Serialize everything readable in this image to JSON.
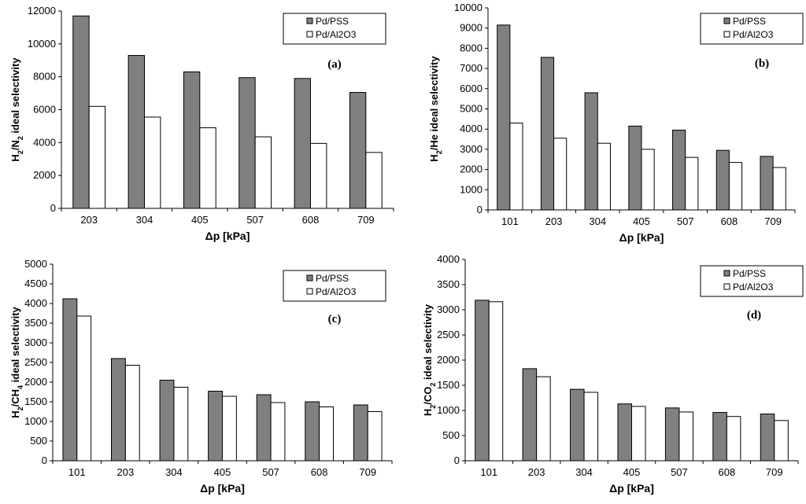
{
  "colors": {
    "series1": "#808080",
    "series2": "#ffffff",
    "stroke": "#000000"
  },
  "chart_data": [
    {
      "type": "bar",
      "panel": "(a)",
      "categories": [
        "203",
        "304",
        "405",
        "507",
        "608",
        "709"
      ],
      "series": [
        {
          "name": "Pd/PSS",
          "values": [
            11700,
            9300,
            8300,
            7950,
            7900,
            7050
          ]
        },
        {
          "name": "Pd/Al2O3",
          "values": [
            6200,
            5550,
            4900,
            4350,
            3950,
            3400
          ]
        }
      ],
      "xlabel": "Δp [kPa]",
      "ylabel_parts": [
        "H",
        "2",
        "/N",
        "2",
        " ideal selectivity"
      ],
      "ylim": [
        0,
        12000
      ],
      "yticks": [
        0,
        2000,
        4000,
        6000,
        8000,
        10000,
        12000
      ],
      "legend_position": "top-right"
    },
    {
      "type": "bar",
      "panel": "(b)",
      "categories": [
        "101",
        "203",
        "304",
        "405",
        "507",
        "608",
        "709"
      ],
      "series": [
        {
          "name": "Pd/PSS",
          "values": [
            9150,
            7550,
            5800,
            4150,
            3950,
            2950,
            2650
          ]
        },
        {
          "name": "Pd/Al2O3",
          "values": [
            4300,
            3550,
            3300,
            3000,
            2600,
            2350,
            2100
          ]
        }
      ],
      "xlabel": "Δp [kPa]",
      "ylabel_parts": [
        "H",
        "2",
        "/He ideal selectivity"
      ],
      "ylim": [
        0,
        10000
      ],
      "yticks": [
        0,
        1000,
        2000,
        3000,
        4000,
        5000,
        6000,
        7000,
        8000,
        9000,
        10000
      ],
      "legend_position": "top-right"
    },
    {
      "type": "bar",
      "panel": "(c)",
      "categories": [
        "101",
        "203",
        "304",
        "405",
        "507",
        "608",
        "709"
      ],
      "series": [
        {
          "name": "Pd/PSS",
          "values": [
            4120,
            2600,
            2050,
            1770,
            1680,
            1500,
            1420
          ]
        },
        {
          "name": "Pd/Al2O3",
          "values": [
            3680,
            2430,
            1870,
            1640,
            1480,
            1370,
            1250
          ]
        }
      ],
      "xlabel": "Δp [kPa]",
      "ylabel_parts": [
        "H",
        "2",
        "/CH",
        "4",
        " ideal selectivity"
      ],
      "ylim": [
        0,
        5000
      ],
      "yticks": [
        0,
        500,
        1000,
        1500,
        2000,
        2500,
        3000,
        3500,
        4000,
        4500,
        5000
      ],
      "legend_position": "top-right"
    },
    {
      "type": "bar",
      "panel": "(d)",
      "categories": [
        "101",
        "203",
        "304",
        "405",
        "507",
        "608",
        "709"
      ],
      "series": [
        {
          "name": "Pd/PSS",
          "values": [
            3190,
            1830,
            1420,
            1130,
            1050,
            960,
            930
          ]
        },
        {
          "name": "Pd/Al2O3",
          "values": [
            3160,
            1670,
            1360,
            1080,
            970,
            880,
            800
          ]
        }
      ],
      "xlabel": "Δp [kPa]",
      "ylabel_parts": [
        "H",
        "2",
        "/CO",
        "2",
        " ideal selectivity"
      ],
      "ylim": [
        0,
        4000
      ],
      "yticks": [
        0,
        500,
        1000,
        1500,
        2000,
        2500,
        3000,
        3500,
        4000
      ],
      "legend_position": "top-right"
    }
  ]
}
